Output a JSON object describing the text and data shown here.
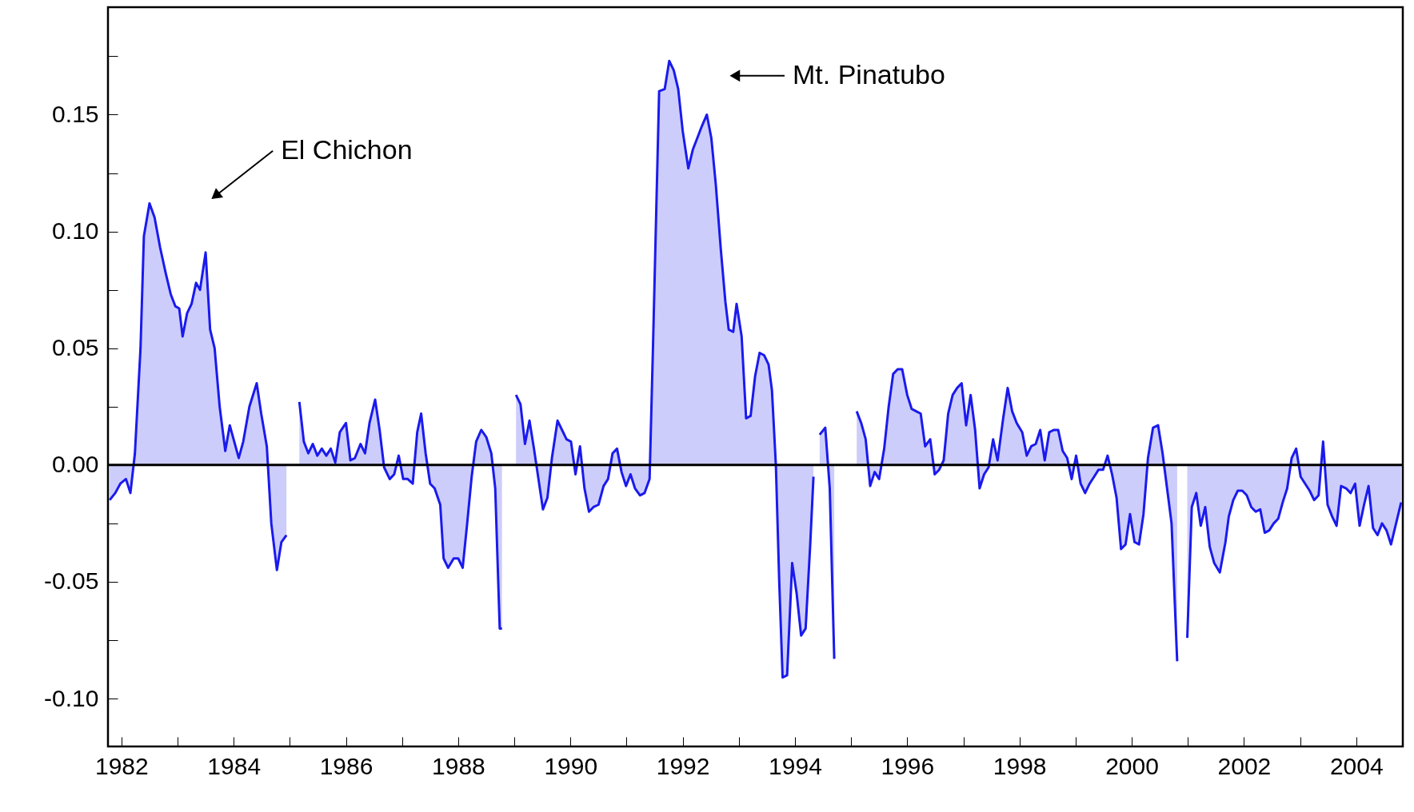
{
  "chart_data": {
    "type": "area",
    "xlim": [
      1981.76,
      2004.83
    ],
    "ylim": [
      -0.1205,
      0.196
    ],
    "xticks": [
      1982,
      {
        "value": 1983,
        "label": null
      },
      1984,
      {
        "value": 1985,
        "label": null
      },
      1986,
      {
        "value": 1987,
        "label": null
      },
      1988,
      {
        "value": 1989,
        "label": null
      },
      1990,
      {
        "value": 1991,
        "label": null
      },
      1992,
      {
        "value": 1993,
        "label": null
      },
      1994,
      {
        "value": 1995,
        "label": null
      },
      1996,
      {
        "value": 1997,
        "label": null
      },
      1998,
      {
        "value": 1999,
        "label": null
      },
      2000,
      {
        "value": 2001,
        "label": null
      },
      2002,
      {
        "value": 2003,
        "label": null
      },
      2004
    ],
    "yticks": [
      {
        "value": -0.1,
        "label": "-0.10"
      },
      {
        "value": -0.075,
        "label": null
      },
      -0.05,
      {
        "value": -0.025,
        "label": null
      },
      {
        "value": 0,
        "label": "0.00"
      },
      {
        "value": 0.025,
        "label": null
      },
      0.05,
      {
        "value": 0.075,
        "label": null
      },
      {
        "value": 0.1,
        "label": "0.10"
      },
      {
        "value": 0.125,
        "label": null
      },
      0.15,
      {
        "value": 0.175,
        "label": null
      }
    ],
    "grid": false,
    "ref_lines": [
      {
        "axis": "y",
        "value": 0,
        "color": "#000000"
      }
    ],
    "annotations": [
      "El Chichon",
      "Mt. Pinatubo"
    ],
    "x": [
      1981.79,
      1981.89,
      1981.98,
      1982.08,
      1982.16,
      1982.24,
      1982.34,
      1982.4,
      1982.5,
      1982.59,
      1982.69,
      1982.79,
      1982.88,
      1982.96,
      1983.03,
      1983.09,
      1983.17,
      1983.25,
      1983.33,
      1983.4,
      1983.5,
      1983.58,
      1983.66,
      1983.75,
      1983.85,
      1983.93,
      1984.01,
      1984.09,
      1984.17,
      1984.28,
      1984.41,
      1984.49,
      1984.59,
      1984.67,
      1984.77,
      1984.85,
      1984.94,
      1985.05,
      1985.17,
      1985.25,
      1985.33,
      1985.41,
      1985.49,
      1985.57,
      1985.65,
      1985.73,
      1985.81,
      1985.89,
      1986.0,
      1986.08,
      1986.16,
      1986.26,
      1986.34,
      1986.42,
      1986.52,
      1986.6,
      1986.68,
      1986.78,
      1986.86,
      1986.94,
      1987.02,
      1987.1,
      1987.19,
      1987.27,
      1987.34,
      1987.42,
      1987.5,
      1987.58,
      1987.68,
      1987.74,
      1987.82,
      1987.92,
      1988.0,
      1988.08,
      1988.16,
      1988.24,
      1988.32,
      1988.41,
      1988.5,
      1988.59,
      1988.66,
      1988.74,
      1988.78,
      1988.9,
      1989.03,
      1989.11,
      1989.19,
      1989.27,
      1989.35,
      1989.43,
      1989.51,
      1989.59,
      1989.67,
      1989.77,
      1989.85,
      1989.93,
      1990.01,
      1990.09,
      1990.17,
      1990.25,
      1990.33,
      1990.41,
      1990.5,
      1990.59,
      1990.67,
      1990.75,
      1990.83,
      1990.91,
      1990.99,
      1991.07,
      1991.15,
      1991.24,
      1991.32,
      1991.41,
      1991.47,
      1991.53,
      1991.58,
      1991.68,
      1991.76,
      1991.84,
      1991.92,
      1992.0,
      1992.1,
      1992.18,
      1992.26,
      1992.34,
      1992.43,
      1992.51,
      1992.59,
      1992.68,
      1992.76,
      1992.82,
      1992.9,
      1992.96,
      1993.05,
      1993.13,
      1993.21,
      1993.29,
      1993.37,
      1993.45,
      1993.53,
      1993.59,
      1993.66,
      1993.72,
      1993.78,
      1993.86,
      1993.95,
      1994.03,
      1994.11,
      1994.19,
      1994.27,
      1994.33,
      1994.38,
      1994.44,
      1994.54,
      1994.62,
      1994.7,
      1994.9,
      1995.1,
      1995.18,
      1995.26,
      1995.34,
      1995.42,
      1995.5,
      1995.59,
      1995.67,
      1995.75,
      1995.83,
      1995.91,
      1996.0,
      1996.08,
      1996.16,
      1996.24,
      1996.32,
      1996.41,
      1996.49,
      1996.57,
      1996.65,
      1996.73,
      1996.81,
      1996.89,
      1996.97,
      1997.05,
      1997.13,
      1997.21,
      1997.29,
      1997.37,
      1997.45,
      1997.53,
      1997.61,
      1997.71,
      1997.79,
      1997.87,
      1997.95,
      1998.05,
      1998.13,
      1998.21,
      1998.29,
      1998.37,
      1998.45,
      1998.53,
      1998.61,
      1998.69,
      1998.77,
      1998.85,
      1998.93,
      1999.01,
      1999.09,
      1999.17,
      1999.25,
      1999.33,
      1999.41,
      1999.49,
      1999.57,
      1999.65,
      1999.73,
      1999.81,
      1999.89,
      1999.97,
      2000.05,
      2000.13,
      2000.21,
      2000.29,
      2000.38,
      2000.47,
      2000.55,
      2000.63,
      2000.71,
      2000.81,
      2000.9,
      2000.99,
      2001.07,
      2001.15,
      2001.23,
      2001.31,
      2001.39,
      2001.47,
      2001.57,
      2001.67,
      2001.73,
      2001.81,
      2001.89,
      2001.97,
      2002.05,
      2002.13,
      2002.21,
      2002.29,
      2002.37,
      2002.45,
      2002.53,
      2002.61,
      2002.69,
      2002.77,
      2002.85,
      2002.93,
      2003.01,
      2003.09,
      2003.17,
      2003.25,
      2003.33,
      2003.41,
      2003.49,
      2003.57,
      2003.65,
      2003.73,
      2003.82,
      2003.9,
      2003.98,
      2004.06,
      2004.14,
      2004.22,
      2004.3,
      2004.38,
      2004.46,
      2004.54,
      2004.62,
      2004.7,
      2004.8
    ],
    "series": [
      {
        "color": "#1a1aee",
        "values": [
          -0.015,
          -0.012,
          -0.008,
          -0.006,
          -0.012,
          0.005,
          0.05,
          0.098,
          0.112,
          0.106,
          0.093,
          0.082,
          0.073,
          0.068,
          0.067,
          0.055,
          0.065,
          0.069,
          0.078,
          0.075,
          0.091,
          0.058,
          0.05,
          0.025,
          0.006,
          0.017,
          0.01,
          0.003,
          0.01,
          0.025,
          0.035,
          0.022,
          0.008,
          -0.025,
          -0.045,
          -0.033,
          -0.03,
          null,
          0.027,
          0.01,
          0.005,
          0.009,
          0.004,
          0.007,
          0.004,
          0.007,
          0.001,
          0.014,
          0.018,
          0.002,
          0.003,
          0.009,
          0.005,
          0.018,
          0.028,
          0.015,
          -0.001,
          -0.006,
          -0.004,
          0.004,
          -0.006,
          -0.006,
          -0.008,
          0.014,
          0.022,
          0.005,
          -0.008,
          -0.01,
          -0.017,
          -0.04,
          -0.044,
          -0.04,
          -0.04,
          -0.044,
          -0.025,
          -0.005,
          0.01,
          0.015,
          0.012,
          0.005,
          -0.01,
          -0.07,
          -0.07,
          null,
          0.03,
          0.026,
          0.009,
          0.019,
          0.007,
          -0.006,
          -0.019,
          -0.014,
          0.003,
          0.019,
          0.015,
          0.011,
          0.01,
          -0.004,
          0.008,
          -0.01,
          -0.02,
          -0.018,
          -0.017,
          -0.009,
          -0.006,
          0.005,
          0.007,
          -0.003,
          -0.009,
          -0.004,
          -0.01,
          -0.013,
          -0.012,
          -0.006,
          0.05,
          0.11,
          0.16,
          0.161,
          0.173,
          0.169,
          0.161,
          0.143,
          0.127,
          0.135,
          0.14,
          0.145,
          0.15,
          0.14,
          0.12,
          0.092,
          0.07,
          0.058,
          0.057,
          0.069,
          0.055,
          0.02,
          0.021,
          0.038,
          0.048,
          0.047,
          0.043,
          0.032,
          0.0,
          -0.05,
          -0.091,
          -0.09,
          -0.042,
          -0.055,
          -0.073,
          -0.07,
          -0.035,
          -0.005,
          null,
          0.013,
          0.016,
          -0.01,
          -0.083,
          null,
          0.023,
          0.018,
          0.011,
          -0.009,
          -0.003,
          -0.006,
          0.007,
          0.025,
          0.039,
          0.041,
          0.041,
          0.03,
          0.024,
          0.023,
          0.022,
          0.008,
          0.011,
          -0.004,
          -0.002,
          0.002,
          0.022,
          0.03,
          0.033,
          0.035,
          0.017,
          0.03,
          0.015,
          -0.01,
          -0.004,
          -0.001,
          0.011,
          0.002,
          0.02,
          0.033,
          0.023,
          0.018,
          0.014,
          0.004,
          0.008,
          0.009,
          0.015,
          0.002,
          0.014,
          0.015,
          0.015,
          0.006,
          0.003,
          -0.006,
          0.004,
          -0.008,
          -0.012,
          -0.008,
          -0.005,
          -0.002,
          -0.002,
          0.004,
          -0.004,
          -0.014,
          -0.036,
          -0.034,
          -0.021,
          -0.033,
          -0.034,
          -0.021,
          0.003,
          0.016,
          0.017,
          0.005,
          -0.01,
          -0.025,
          -0.084,
          null,
          -0.074,
          -0.018,
          -0.012,
          -0.026,
          -0.018,
          -0.035,
          -0.042,
          -0.046,
          -0.033,
          -0.022,
          -0.015,
          -0.011,
          -0.011,
          -0.013,
          -0.018,
          -0.02,
          -0.019,
          -0.029,
          -0.028,
          -0.025,
          -0.023,
          -0.016,
          -0.01,
          0.003,
          0.007,
          -0.005,
          -0.008,
          -0.011,
          -0.015,
          -0.013,
          0.01,
          -0.017,
          -0.022,
          -0.026,
          -0.009,
          -0.01,
          -0.012,
          -0.008,
          -0.026,
          -0.017,
          -0.009,
          -0.027,
          -0.03,
          -0.025,
          -0.028,
          -0.034,
          -0.026,
          -0.016
        ]
      }
    ]
  }
}
